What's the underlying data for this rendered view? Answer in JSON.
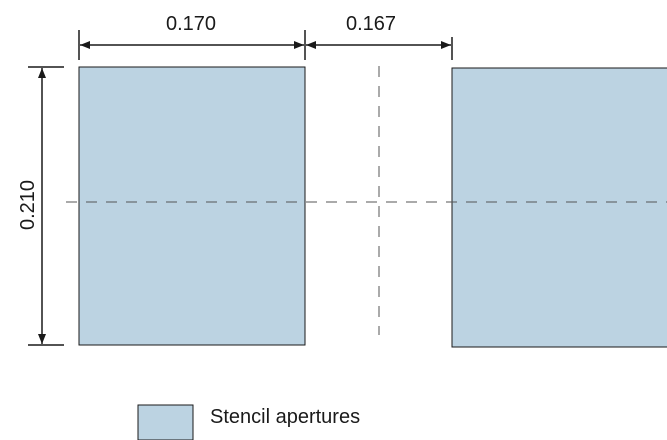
{
  "diagram": {
    "aperture_fill": "#bcd3e2",
    "outline_color": "#1a1a1a",
    "dimensions": {
      "width_label": "0.170",
      "gap_label": "0.167",
      "height_label": "0.210"
    },
    "legend": {
      "label": "Stencil apertures"
    }
  }
}
